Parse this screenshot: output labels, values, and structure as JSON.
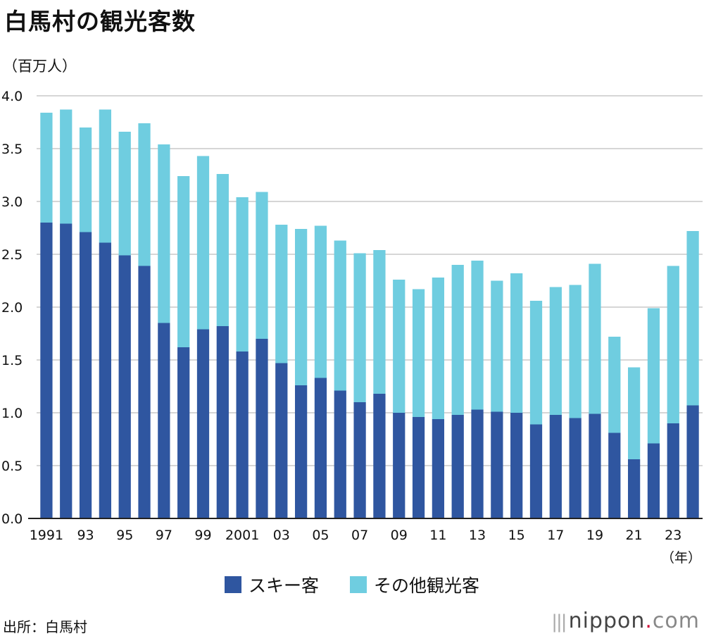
{
  "title": "白馬村の観光客数",
  "unit_label": "（百万人）",
  "year_suffix": "（年）",
  "source": "出所：白馬村",
  "brand": {
    "name": "nippon",
    "dot": ".",
    "tld": "com"
  },
  "colors": {
    "ski": "#2f56a0",
    "other": "#6fcde0",
    "grid": "#c8c8c8",
    "axis": "#222222"
  },
  "chart_data": {
    "type": "bar",
    "stacked": true,
    "title": "白馬村の観光客数",
    "ylabel": "（百万人）",
    "xlabel": "（年）",
    "ylim": [
      0,
      4.0
    ],
    "yticks": [
      "0.0",
      "0.5",
      "1.0",
      "1.5",
      "2.0",
      "2.5",
      "3.0",
      "3.5",
      "4.0"
    ],
    "categories": [
      "1991",
      "1992",
      "1993",
      "1994",
      "1995",
      "1996",
      "1997",
      "1998",
      "1999",
      "2000",
      "2001",
      "2002",
      "2003",
      "2004",
      "2005",
      "2006",
      "2007",
      "2008",
      "2009",
      "2010",
      "2011",
      "2012",
      "2013",
      "2014",
      "2015",
      "2016",
      "2017",
      "2018",
      "2019",
      "2020",
      "2021",
      "2022",
      "2023",
      "2024"
    ],
    "xtick_labels": [
      "1991",
      "",
      "93",
      "",
      "95",
      "",
      "97",
      "",
      "99",
      "",
      "2001",
      "",
      "03",
      "",
      "05",
      "",
      "07",
      "",
      "09",
      "",
      "11",
      "",
      "13",
      "",
      "15",
      "",
      "17",
      "",
      "19",
      "",
      "21",
      "",
      "23",
      ""
    ],
    "series": [
      {
        "name": "スキー客",
        "values": [
          2.8,
          2.79,
          2.71,
          2.61,
          2.49,
          2.39,
          1.85,
          1.62,
          1.79,
          1.82,
          1.58,
          1.7,
          1.47,
          1.26,
          1.33,
          1.21,
          1.1,
          1.18,
          1.0,
          0.96,
          0.94,
          0.98,
          1.03,
          1.01,
          1.0,
          0.89,
          0.98,
          0.95,
          0.99,
          0.81,
          0.56,
          0.71,
          0.9,
          1.07
        ]
      },
      {
        "name": "その他観光客",
        "values": [
          1.04,
          1.08,
          0.99,
          1.26,
          1.17,
          1.35,
          1.69,
          1.62,
          1.64,
          1.44,
          1.46,
          1.39,
          1.31,
          1.48,
          1.44,
          1.42,
          1.41,
          1.36,
          1.26,
          1.21,
          1.34,
          1.42,
          1.41,
          1.24,
          1.32,
          1.17,
          1.21,
          1.26,
          1.42,
          0.91,
          0.87,
          1.28,
          1.49,
          1.65
        ]
      }
    ],
    "legend": "bottom-center",
    "grid": true
  }
}
